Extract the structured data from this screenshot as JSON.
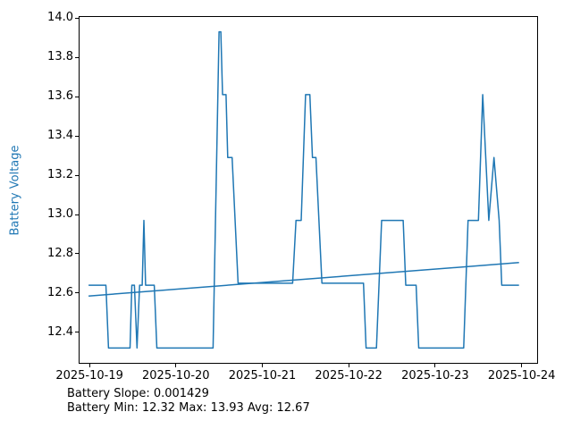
{
  "figure": {
    "background": "#ffffff",
    "text_color": "#000000"
  },
  "chart_data": {
    "type": "line",
    "title": "",
    "xlabel": "",
    "ylabel": "Battery Voltage",
    "ylabel_color": "#1f77b4",
    "line_color": "#1f77b4",
    "grid": false,
    "legend": "none",
    "ylim": [
      12.24,
      14.01
    ],
    "xlim_days": [
      18.875,
      24.19
    ],
    "y_ticks": [
      {
        "value": 12.4,
        "label": "12.4"
      },
      {
        "value": 12.6,
        "label": "12.6"
      },
      {
        "value": 12.8,
        "label": "12.8"
      },
      {
        "value": 13.0,
        "label": "13.0"
      },
      {
        "value": 13.2,
        "label": "13.2"
      },
      {
        "value": 13.4,
        "label": "13.4"
      },
      {
        "value": 13.6,
        "label": "13.6"
      },
      {
        "value": 13.8,
        "label": "13.8"
      },
      {
        "value": 14.0,
        "label": "14.0"
      }
    ],
    "x_ticks": [
      {
        "day": 19,
        "label": "2025-10-19"
      },
      {
        "day": 20,
        "label": "2025-10-20"
      },
      {
        "day": 21,
        "label": "2025-10-21"
      },
      {
        "day": 22,
        "label": "2025-10-22"
      },
      {
        "day": 23,
        "label": "2025-10-23"
      },
      {
        "day": 24,
        "label": "2025-10-24"
      }
    ],
    "series": [
      {
        "name": "battery-voltage-line",
        "points": [
          [
            18.99,
            12.64
          ],
          [
            19.19,
            12.64
          ],
          [
            19.22,
            12.32
          ],
          [
            19.47,
            12.32
          ],
          [
            19.49,
            12.64
          ],
          [
            19.52,
            12.64
          ],
          [
            19.55,
            12.32
          ],
          [
            19.58,
            12.64
          ],
          [
            19.61,
            12.64
          ],
          [
            19.63,
            12.97
          ],
          [
            19.65,
            12.64
          ],
          [
            19.75,
            12.64
          ],
          [
            19.78,
            12.32
          ],
          [
            20.43,
            12.32
          ],
          [
            20.5,
            13.93
          ],
          [
            20.52,
            13.93
          ],
          [
            20.54,
            13.61
          ],
          [
            20.58,
            13.61
          ],
          [
            20.6,
            13.29
          ],
          [
            20.65,
            13.29
          ],
          [
            20.72,
            12.65
          ],
          [
            21.35,
            12.65
          ],
          [
            21.39,
            12.97
          ],
          [
            21.45,
            12.97
          ],
          [
            21.5,
            13.61
          ],
          [
            21.55,
            13.61
          ],
          [
            21.58,
            13.29
          ],
          [
            21.62,
            13.29
          ],
          [
            21.69,
            12.65
          ],
          [
            22.17,
            12.65
          ],
          [
            22.2,
            12.32
          ],
          [
            22.32,
            12.32
          ],
          [
            22.38,
            12.97
          ],
          [
            22.63,
            12.97
          ],
          [
            22.66,
            12.64
          ],
          [
            22.78,
            12.64
          ],
          [
            22.81,
            12.32
          ],
          [
            23.33,
            12.32
          ],
          [
            23.38,
            12.97
          ],
          [
            23.5,
            12.97
          ],
          [
            23.55,
            13.61
          ],
          [
            23.62,
            12.97
          ],
          [
            23.68,
            13.29
          ],
          [
            23.74,
            12.97
          ],
          [
            23.77,
            12.64
          ],
          [
            23.97,
            12.64
          ]
        ]
      },
      {
        "name": "battery-trend-line",
        "points": [
          [
            18.99,
            12.585
          ],
          [
            23.97,
            12.755
          ]
        ]
      }
    ],
    "stats": {
      "slope": 0.001429,
      "min": 12.32,
      "max": 13.93,
      "avg": 12.67
    }
  },
  "annotations": {
    "line1": "Battery Slope: 0.001429",
    "line2": "Battery Min: 12.32 Max: 13.93 Avg: 12.67"
  }
}
